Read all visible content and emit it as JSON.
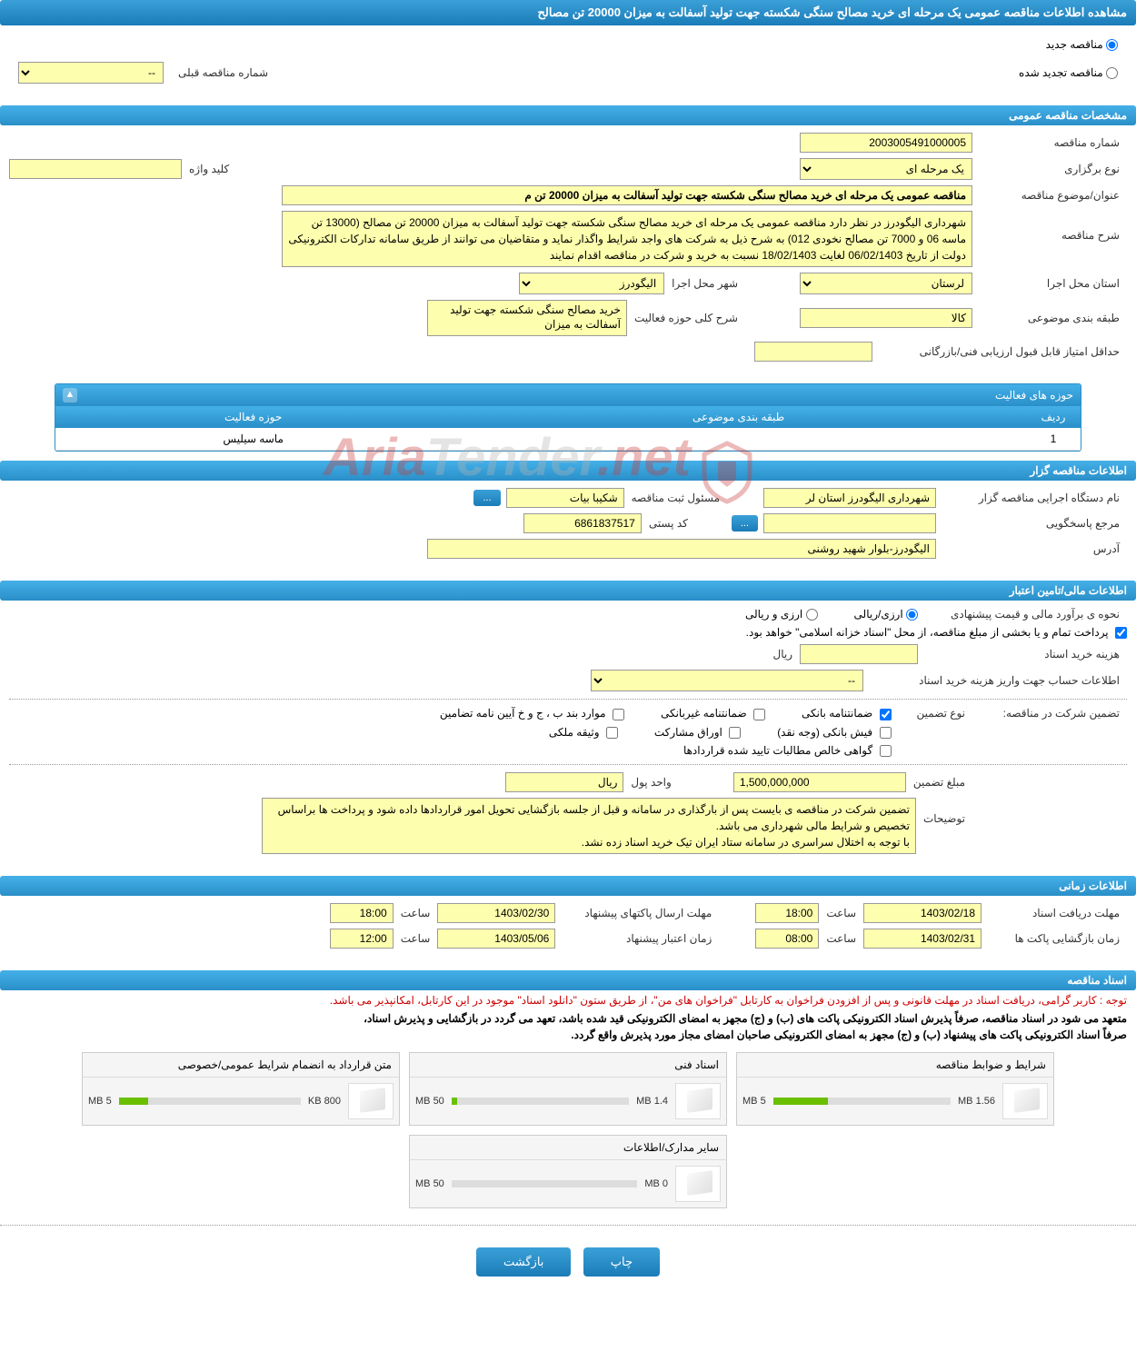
{
  "header": {
    "title": "مشاهده اطلاعات مناقصه عمومی یک مرحله ای خرید مصالح سنگی شکسته جهت تولید آسفالت به میزان 20000 تن مصالح"
  },
  "top_radios": {
    "new_label": "مناقصه جدید",
    "renewed_label": "مناقصه تجدید شده",
    "prev_number_label": "شماره مناقصه قبلی",
    "prev_number_placeholder": "--"
  },
  "general": {
    "section_title": "مشخصات مناقصه عمومی",
    "number_label": "شماره مناقصه",
    "number_value": "2003005491000005",
    "type_label": "نوع برگزاری",
    "type_value": "یک مرحله ای",
    "keyword_label": "کلید واژه",
    "keyword_value": "",
    "subject_label": "عنوان/موضوع مناقصه",
    "subject_value": "مناقصه عمومی یک مرحله ای خرید مصالح سنگی شکسته جهت تولید آسفالت به میزان 20000 تن م",
    "desc_label": "شرح مناقصه",
    "desc_value": "شهرداری الیگودرز در نظر دارد مناقصه عمومی یک مرحله ای خرید مصالح سنگی شکسته جهت تولید آسفالت به میزان 20000 تن مصالح (13000 تن ماسه 06 و 7000 تن مصالح نخودی 012) به شرح ذیل به شرکت های واجد شرایط واگذار نماید و متقاضیان می توانند از طریق سامانه تدارکات الکترونیکی دولت از تاریخ 06/02/1403 لغایت 18/02/1403 نسبت به خرید و شرکت در مناقصه اقدام نمایند",
    "province_label": "استان محل اجرا",
    "province_value": "لرستان",
    "city_label": "شهر محل اجرا",
    "city_value": "الیگودرز",
    "category_label": "طبقه بندی موضوعی",
    "category_value": "کالا",
    "activity_desc_label": "شرح کلی حوزه فعالیت",
    "activity_desc_value": "خرید مصالح سنگی شکسته جهت تولید آسفالت به میزان",
    "min_score_label": "حداقل امتیاز قابل قبول ارزیابی فنی/بازرگانی",
    "min_score_value": ""
  },
  "activities": {
    "box_title": "حوزه های فعالیت",
    "col_row": "ردیف",
    "col_category": "طبقه بندی موضوعی",
    "col_field": "حوزه فعالیت",
    "rows": [
      {
        "idx": "1",
        "category": "",
        "field": "ماسه سیلیس"
      }
    ]
  },
  "organizer": {
    "section_title": "اطلاعات مناقصه گزار",
    "exec_label": "نام دستگاه اجرایی مناقصه گزار",
    "exec_value": "شهرداری الیگودرز استان لر",
    "reg_official_label": "مسئول ثبت مناقصه",
    "reg_official_value": "شکیبا بیات",
    "reg_btn": "...",
    "responder_label": "مرجع پاسخگویی",
    "responder_value": "",
    "responder_btn": "...",
    "postal_label": "کد پستی",
    "postal_value": "6861837517",
    "address_label": "آدرس",
    "address_value": "الیگودرز-بلوار شهید روشنی"
  },
  "financial": {
    "section_title": "اطلاعات مالی/تامین اعتبار",
    "estimate_label": "نحوه ی برآورد مالی و قیمت پیشنهادی",
    "currency_rial": "ارزی/ریالی",
    "currency_both": "ارزی و ریالی",
    "payment_note": "پرداخت تمام و یا بخشی از مبلغ مناقصه، از محل \"اسناد خزانه اسلامی\" خواهد بود.",
    "doc_cost_label": "هزینه خرید اسناد",
    "doc_cost_value": "",
    "doc_cost_unit": "ریال",
    "account_label": "اطلاعات حساب جهت واریز هزینه خرید اسناد",
    "account_value": "--",
    "guarantee_prefix": "تضمین شرکت در مناقصه:",
    "guarantee_type_label": "نوع تضمین",
    "chk_bank_guarantee": "ضمانتنامه بانکی",
    "chk_nonbank_guarantee": "ضمانتنامه غیربانکی",
    "chk_clauses": "موارد بند ب ، ج و خ آیین نامه تضامین",
    "chk_bank_receipt": "فیش بانکی (وجه نقد)",
    "chk_bonds": "اوراق مشارکت",
    "chk_property": "وثیقه ملکی",
    "chk_clearance": "گواهی خالص مطالبات تایید شده قراردادها",
    "guarantee_amount_label": "مبلغ تضمین",
    "guarantee_amount_value": "1,500,000,000",
    "money_unit_label": "واحد پول",
    "money_unit_value": "ریال",
    "notes_label": "توضیحات",
    "notes_value": "تضمین شرکت در مناقصه ی بایست پس از بارگذاری در سامانه و قبل از جلسه بازگشایی تحویل امور قراردادها داده شود و پرداخت ها براساس تخصیص و شرایط مالی شهرداری می باشد.\nبا توجه به اختلال سراسری در سامانه ستاد ایران تیک خرید اسناد زده نشد."
  },
  "timing": {
    "section_title": "اطلاعات زمانی",
    "receive_deadline_label": "مهلت دریافت اسناد",
    "receive_deadline_date": "1403/02/18",
    "receive_deadline_time_label": "ساعت",
    "receive_deadline_time": "18:00",
    "submit_deadline_label": "مهلت ارسال پاکتهای پیشنهاد",
    "submit_deadline_date": "1403/02/30",
    "submit_deadline_time_label": "ساعت",
    "submit_deadline_time": "18:00",
    "opening_label": "زمان بازگشایی پاکت ها",
    "opening_date": "1403/02/31",
    "opening_time_label": "ساعت",
    "opening_time": "08:00",
    "credit_label": "زمان اعتبار پیشنهاد",
    "credit_date": "1403/05/06",
    "credit_time_label": "ساعت",
    "credit_time": "12:00"
  },
  "docs": {
    "section_title": "اسناد مناقصه",
    "notice_red": "توجه : کاربر گرامی، دریافت اسناد در مهلت قانونی و پس از افزودن فراخوان به کارتابل \"فراخوان های من\"، از طریق ستون \"دانلود اسناد\" موجود در این کارتابل، امکانپذیر می باشد.",
    "notice_bold1": "متعهد می شود در اسناد مناقصه، صرفاً پذیرش اسناد الکترونیکی پاکت های (ب) و (ج) مجهز به امضای الکترونیکی قید شده باشد، تعهد می گردد در بازگشایی و پذیرش اسناد،",
    "notice_bold2": "صرفاً اسناد الکترونیکی پاکت های پیشنهاد (ب) و (ج) مجهز به امضای الکترونیکی صاحبان امضای مجاز مورد پذیرش واقع گردد.",
    "items": [
      {
        "title": "شرایط و ضوابط مناقصه",
        "size": "1.56 MB",
        "max": "5 MB",
        "fill_pct": 31
      },
      {
        "title": "اسناد فنی",
        "size": "1.4 MB",
        "max": "50 MB",
        "fill_pct": 3
      },
      {
        "title": "متن قرارداد به انضمام شرایط عمومی/خصوصی",
        "size": "800 KB",
        "max": "5 MB",
        "fill_pct": 16
      },
      {
        "title": "سایر مدارک/اطلاعات",
        "size": "0 MB",
        "max": "50 MB",
        "fill_pct": 0
      }
    ]
  },
  "buttons": {
    "print": "چاپ",
    "back": "بازگشت"
  },
  "watermark": {
    "t1": "Aria",
    "t2": "Tender",
    "t3": ".net"
  }
}
